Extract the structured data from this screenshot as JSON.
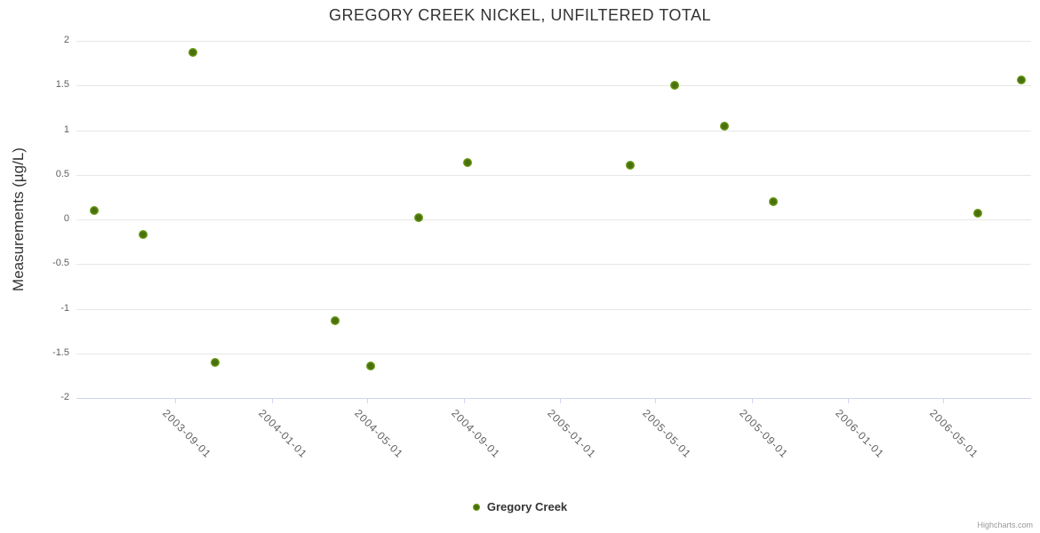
{
  "credits": {
    "label": "Highcharts.com"
  },
  "colors": {
    "point_outer": "#8ec63f",
    "point_mid": "#6da214",
    "point_core": "#4a6f0d",
    "gridline": "#e6e6e6",
    "axis_line": "#ccd6eb",
    "tick_label": "#606060",
    "title_text": "#333333"
  },
  "chart_data": {
    "type": "scatter",
    "title": "GREGORY CREEK NICKEL, UNFILTERED TOTAL",
    "xlabel": "",
    "ylabel": "Measurements (µg/L)",
    "ylim": [
      -2,
      2
    ],
    "y_ticks": [
      2,
      1.5,
      1,
      0.5,
      0,
      -0.5,
      -1,
      -1.5,
      -2
    ],
    "x_ticks": [
      "2003-09-01",
      "2004-01-01",
      "2004-05-01",
      "2004-09-01",
      "2005-01-01",
      "2005-05-01",
      "2005-09-01",
      "2006-01-01",
      "2006-05-01"
    ],
    "x_range": [
      "2003-04-28",
      "2006-08-20"
    ],
    "grid": "horizontal",
    "legend_position": "bottom",
    "series": [
      {
        "name": "Gregory Creek",
        "color": "#69a80c",
        "points": [
          {
            "date": "2003-05-21",
            "value": 0.1
          },
          {
            "date": "2003-07-21",
            "value": -0.17
          },
          {
            "date": "2003-09-23",
            "value": 1.87
          },
          {
            "date": "2003-10-21",
            "value": -1.6
          },
          {
            "date": "2004-03-21",
            "value": -1.13
          },
          {
            "date": "2004-05-05",
            "value": -1.64
          },
          {
            "date": "2004-07-05",
            "value": 0.02
          },
          {
            "date": "2004-09-05",
            "value": 0.64
          },
          {
            "date": "2005-03-30",
            "value": 0.61
          },
          {
            "date": "2005-05-25",
            "value": 1.5
          },
          {
            "date": "2005-07-27",
            "value": 1.04
          },
          {
            "date": "2005-09-27",
            "value": 0.2
          },
          {
            "date": "2006-06-13",
            "value": 0.07
          },
          {
            "date": "2006-08-08",
            "value": 1.56
          }
        ]
      }
    ]
  }
}
